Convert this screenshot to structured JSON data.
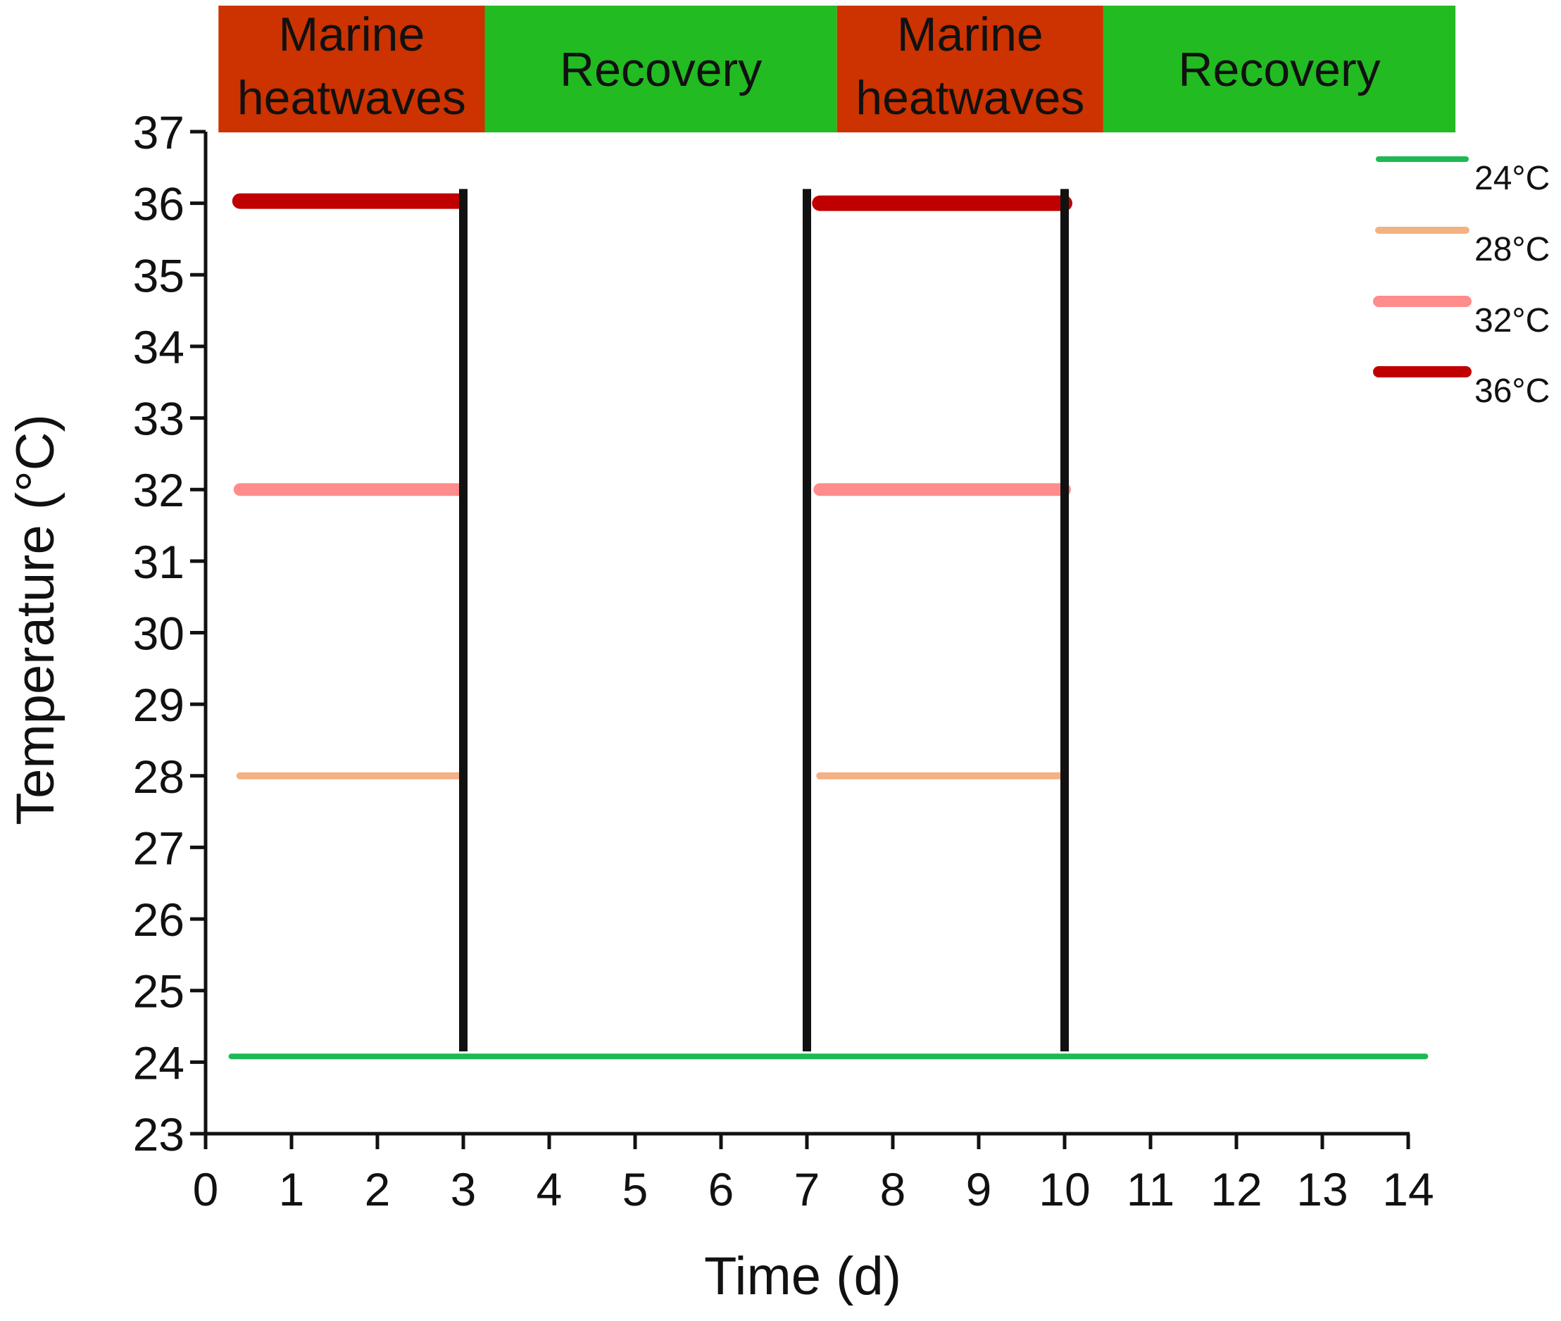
{
  "chart_data": {
    "type": "line",
    "title": "",
    "xlabel": "Time (d)",
    "ylabel": "Temperature (°C)",
    "xlim": [
      0,
      14
    ],
    "ylim": [
      23,
      37
    ],
    "x_ticks": [
      "0",
      "1",
      "2",
      "3",
      "4",
      "5",
      "6",
      "7",
      "8",
      "9",
      "10",
      "11",
      "12",
      "13",
      "14"
    ],
    "y_ticks": [
      "23",
      "24",
      "25",
      "26",
      "27",
      "28",
      "29",
      "30",
      "31",
      "32",
      "33",
      "34",
      "35",
      "36",
      "37"
    ],
    "phases": [
      {
        "label_line1": "Marine",
        "label_line2": "heatwaves",
        "start": 0.15,
        "end": 3.25,
        "color": "#cc3300"
      },
      {
        "label_line1": "Recovery",
        "label_line2": "",
        "start": 3.25,
        "end": 7.35,
        "color": "#22bb22"
      },
      {
        "label_line1": "Marine",
        "label_line2": "heatwaves",
        "start": 7.35,
        "end": 10.45,
        "color": "#cc3300"
      },
      {
        "label_line1": "Recovery",
        "label_line2": "",
        "start": 10.45,
        "end": 14.55,
        "color": "#22bb22"
      }
    ],
    "series": [
      {
        "name": "24°C",
        "color": "#1db954",
        "width": 8,
        "segments": [
          [
            [
              0.3,
              24.08
            ],
            [
              14.2,
              24.08
            ]
          ]
        ]
      },
      {
        "name": "28°C",
        "color": "#f4b183",
        "width": 10,
        "segments": [
          [
            [
              0.4,
              28
            ],
            [
              2.95,
              28
            ]
          ],
          [
            [
              7.15,
              28
            ],
            [
              10.0,
              28
            ]
          ]
        ]
      },
      {
        "name": "32°C",
        "color": "#ff8c8c",
        "width": 18,
        "segments": [
          [
            [
              0.4,
              32
            ],
            [
              2.95,
              32
            ]
          ],
          [
            [
              7.15,
              32
            ],
            [
              10.0,
              32
            ]
          ]
        ]
      },
      {
        "name": "36°C",
        "color": "#c00000",
        "width": 22,
        "segments": [
          [
            [
              0.4,
              36.03
            ],
            [
              2.95,
              36.03
            ]
          ],
          [
            [
              7.15,
              36.0
            ],
            [
              10.0,
              36.0
            ]
          ]
        ]
      }
    ],
    "markers": [
      {
        "x": 3,
        "y_from": 24.15,
        "y_to": 36.2,
        "color": "#111111"
      },
      {
        "x": 7,
        "y_from": 24.15,
        "y_to": 36.2,
        "color": "#111111"
      },
      {
        "x": 10,
        "y_from": 24.15,
        "y_to": 36.2,
        "color": "#111111"
      }
    ],
    "legend": {
      "position": "top-right"
    },
    "grid": false
  }
}
